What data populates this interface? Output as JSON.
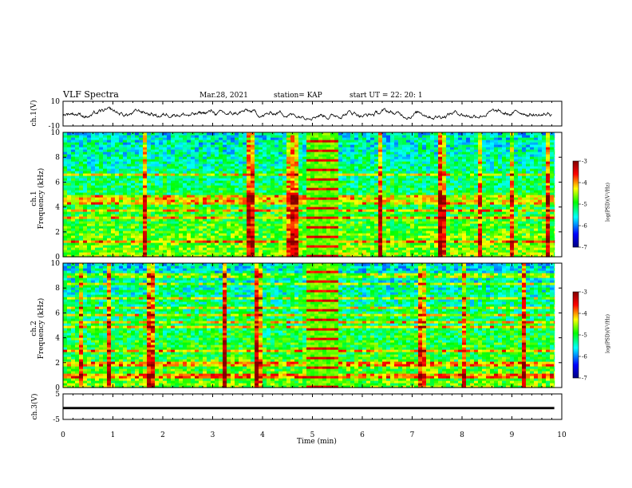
{
  "header": {
    "title": "VLF Spectra",
    "date": "Mar.28, 2021",
    "station": "station= KAP",
    "start": "start  UT  =   22: 20: 1"
  },
  "chart_data": [
    {
      "type": "line",
      "name": "ch1-waveform",
      "ylabel": "ch.1(V)",
      "ylim": [
        -10,
        10
      ],
      "y_ticks": [
        "10",
        "-10"
      ],
      "xlim": [
        0,
        10
      ]
    },
    {
      "type": "heatmap",
      "name": "ch1-spectrogram",
      "ylabel": "ch.1\nFrequency  (kHz)",
      "ylabel_lines": [
        "ch.1",
        "Frequency  (kHz)"
      ],
      "ylim": [
        0,
        10
      ],
      "y_ticks": [
        "0",
        "2",
        "4",
        "6",
        "8",
        "10"
      ],
      "xlim": [
        0,
        10
      ],
      "colorbar": {
        "label": "log(PSD)(V²/Hz)",
        "range": [
          -7,
          -3
        ],
        "ticks": [
          "-3",
          "-4",
          "-5",
          "-6",
          "-7"
        ]
      }
    },
    {
      "type": "heatmap",
      "name": "ch2-spectrogram",
      "ylabel_lines": [
        "ch.2",
        "Frequency  (kHz)"
      ],
      "ylim": [
        0,
        10
      ],
      "y_ticks": [
        "0",
        "2",
        "4",
        "6",
        "8",
        "10"
      ],
      "xlim": [
        0,
        10
      ],
      "colorbar": {
        "label": "log(PSD)(V²/Hz)",
        "range": [
          -7,
          -3
        ],
        "ticks": [
          "-3",
          "-4",
          "-5",
          "-6",
          "-7"
        ]
      }
    },
    {
      "type": "line",
      "name": "ch3-waveform",
      "ylabel": "ch.3(V)",
      "ylim": [
        -5,
        5
      ],
      "y_ticks": [
        "5",
        "-5"
      ],
      "xlim": [
        0,
        10
      ],
      "xlabel": "Time  (min)",
      "x_ticks": [
        "0",
        "1",
        "2",
        "3",
        "4",
        "5",
        "6",
        "7",
        "8",
        "9",
        "10"
      ]
    }
  ],
  "colors": {
    "colormap": [
      "#000080",
      "#0000ff",
      "#00ffff",
      "#00ff00",
      "#ffff00",
      "#ff0000",
      "#800000"
    ]
  }
}
